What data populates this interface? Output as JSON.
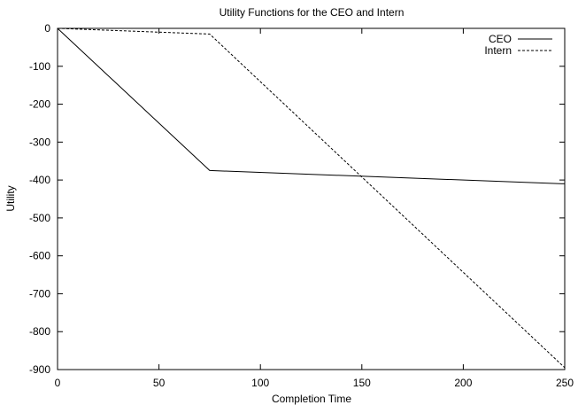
{
  "chart_data": {
    "type": "line",
    "title": "Utility Functions for the CEO and Intern",
    "xlabel": "Completion Time",
    "ylabel": "Utility",
    "xlim": [
      0,
      250
    ],
    "ylim": [
      -900,
      0
    ],
    "xticks": [
      0,
      50,
      100,
      150,
      200,
      250
    ],
    "yticks": [
      0,
      -100,
      -200,
      -300,
      -400,
      -500,
      -600,
      -700,
      -800,
      -900
    ],
    "grid": false,
    "legend_position": "top-right",
    "series": [
      {
        "name": "CEO",
        "line_style": "solid",
        "color": "#000000",
        "points": [
          [
            0,
            0
          ],
          [
            75,
            -375
          ],
          [
            250,
            -410
          ]
        ]
      },
      {
        "name": "Intern",
        "line_style": "dashed",
        "color": "#000000",
        "points": [
          [
            0,
            0
          ],
          [
            75,
            -15
          ],
          [
            250,
            -895
          ]
        ]
      }
    ]
  }
}
